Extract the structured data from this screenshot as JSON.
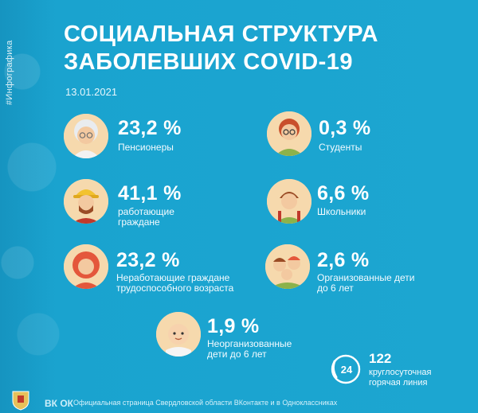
{
  "header": {
    "side_tag": "#Инфографика",
    "title_line1": "СОЦИАЛЬНАЯ СТРУКТУРА",
    "title_line2": "ЗАБОЛЕВШИХ COVID-19",
    "date": "13.01.2021"
  },
  "stats": {
    "pensioners": {
      "value": "23,2 %",
      "label1": "Пенсионеры",
      "label2": "",
      "icon": "elderly-woman-icon"
    },
    "students": {
      "value": "0,3 %",
      "label1": "Студенты",
      "label2": "",
      "icon": "student-icon"
    },
    "workers": {
      "value": "41,1 %",
      "label1": "работающие",
      "label2": "граждане",
      "icon": "worker-icon"
    },
    "schoolkids": {
      "value": "6,6 %",
      "label1": "Школьники",
      "label2": "",
      "icon": "schoolboy-icon"
    },
    "unemployed": {
      "value": "23,2 %",
      "label1": "Неработающие граждане",
      "label2": "трудоспособного возраста",
      "icon": "woman-icon"
    },
    "organized_kids": {
      "value": "2,6 %",
      "label1": "Организованные дети",
      "label2": "до 6 лет",
      "icon": "kids-group-icon"
    },
    "unorganized_kids": {
      "value": "1,9 %",
      "label1": "Неорганизованные",
      "label2": "дети до 6 лет",
      "icon": "baby-icon"
    }
  },
  "hotline": {
    "badge": "24",
    "number": "122",
    "label1": "круглосуточная",
    "label2": "горячая линия"
  },
  "footer": {
    "social_icons": "ВК ОК",
    "text": "Официальная страница Свердловской области ВКонтакте и в Одноклассниках"
  },
  "colors": {
    "background": "#1aa3cf",
    "text": "#ffffff"
  }
}
